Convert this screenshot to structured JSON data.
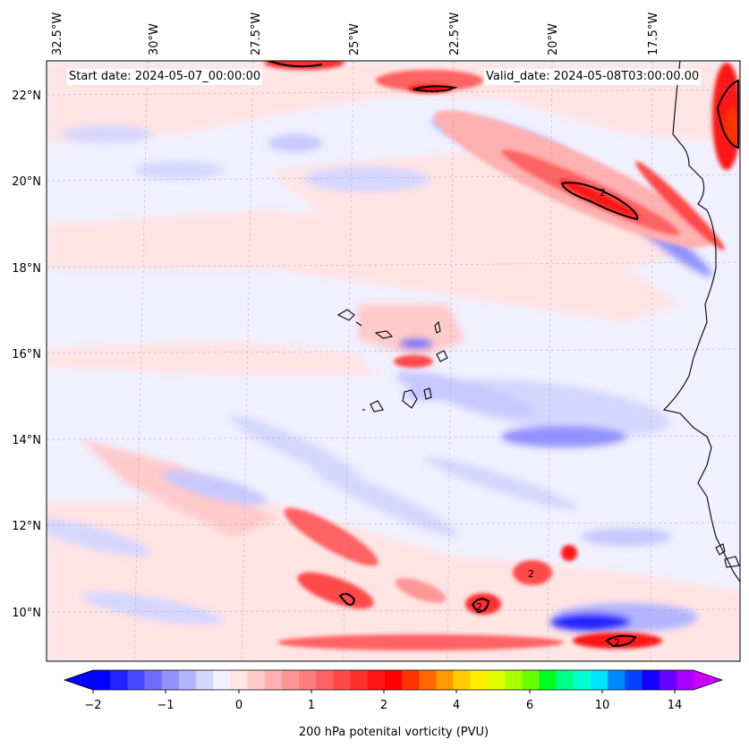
{
  "header": {
    "start_date": "Start date: 2024-05-07_00:00:00",
    "valid_date": "Valid_date: 2024-05-08T03:00:00.00"
  },
  "map": {
    "lon_labels": [
      "32.5°W",
      "30°W",
      "27.5°W",
      "25°W",
      "22.5°W",
      "20°W",
      "17.5°W"
    ],
    "lat_labels": [
      "22°N",
      "20°N",
      "18°N",
      "16°N",
      "14°N",
      "12°N",
      "10°N"
    ],
    "contour_label": "2"
  },
  "colorbar": {
    "tick_labels": [
      "−2",
      "−1",
      "0",
      "1",
      "2",
      "4",
      "6",
      "10",
      "14"
    ],
    "title": "200 hPa potenital vorticity (PVU)",
    "colors": [
      "#0000ff",
      "#2222ff",
      "#4848ff",
      "#6d6dff",
      "#9191ff",
      "#b4b4ff",
      "#d6d6ff",
      "#f0f0ff",
      "#ffe4e4",
      "#ffcaca",
      "#ffb0b0",
      "#ff9696",
      "#ff7c7c",
      "#ff6262",
      "#ff4848",
      "#ff2e2e",
      "#ff1414",
      "#ff0000",
      "#ff3300",
      "#ff6600",
      "#ff9900",
      "#ffcc00",
      "#ffee00",
      "#ddff00",
      "#aaff00",
      "#66ff00",
      "#00ff22",
      "#00ff88",
      "#00ffcc",
      "#00e5ff",
      "#0088ff",
      "#0044ff",
      "#1400ff",
      "#6600ff",
      "#aa00ff"
    ],
    "extend_min_color": "#0000ff",
    "extend_max_color": "#cc00ff"
  },
  "colors": {
    "background_field": "#f0f0ff",
    "weak_positive": "#ffe4e4",
    "strong_positive": "#ff0000",
    "negative": "#c8c8ff",
    "strong_negative": "#2222ff",
    "coastline": "#000000"
  }
}
